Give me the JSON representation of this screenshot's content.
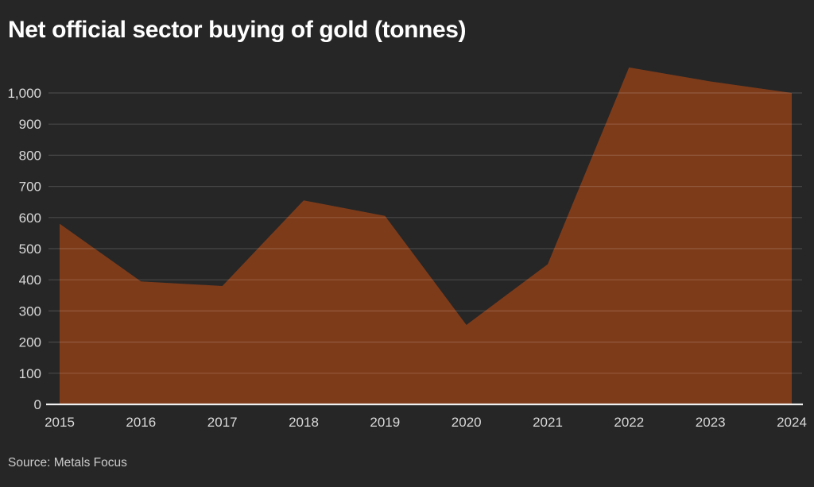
{
  "header": {
    "title": "Net official sector buying of gold (tonnes)"
  },
  "footer": {
    "source_label": "Source: Metals Focus"
  },
  "chart_data": {
    "type": "area",
    "title": "Net official sector buying of gold (tonnes)",
    "categories": [
      "2015",
      "2016",
      "2017",
      "2018",
      "2019",
      "2020",
      "2021",
      "2022",
      "2023",
      "2024"
    ],
    "values": [
      580,
      395,
      380,
      655,
      605,
      255,
      450,
      1082,
      1037,
      1000
    ],
    "xlabel": "",
    "ylabel": "",
    "units": "tonnes",
    "ylim": [
      0,
      1000
    ],
    "ytick_step": 100,
    "ytick_labels": [
      "0",
      "100",
      "200",
      "300",
      "400",
      "500",
      "600",
      "700",
      "800",
      "900",
      "1,000"
    ],
    "grid": true,
    "legend": false,
    "source": "Source: Metals Focus",
    "colors": {
      "background": "#262626",
      "area_fill": "#7E3B1A",
      "gridline": "rgba(255,255,255,0.16)",
      "axis_line": "#F0F0F0",
      "tick_label": "#D9D9D9",
      "title": "#FFFFFF",
      "source": "#CCCCCC"
    }
  }
}
